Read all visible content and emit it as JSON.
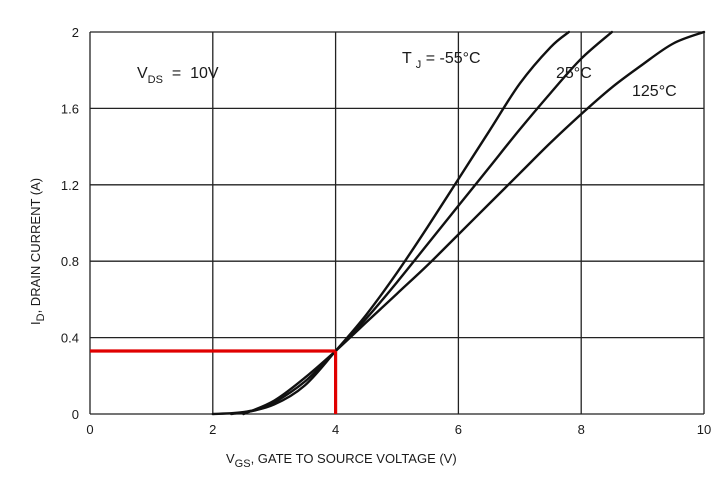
{
  "chart_data": {
    "type": "line",
    "xlabel_main": "V",
    "xlabel_sub": "GS",
    "xlabel_rest": ", GATE TO SOURCE VOLTAGE (V)",
    "ylabel_main": "I",
    "ylabel_sub": "D",
    "ylabel_rest": ", DRAIN CURRENT (A)",
    "xlim": [
      0,
      10
    ],
    "ylim": [
      0,
      2
    ],
    "x_ticks": [
      "0",
      "2",
      "4",
      "6",
      "8",
      "10"
    ],
    "y_ticks": [
      "0",
      "0.4",
      "0.8",
      "1.2",
      "1.6",
      "2"
    ],
    "grid": true,
    "annotation_vds": {
      "main": "V",
      "sub": "DS",
      "rest": "  =  10V"
    },
    "annotation_tj": {
      "main": "T",
      "sub": "J",
      "rest": " = -55°C"
    },
    "series": [
      {
        "name": "-55°C",
        "label": "T J = -55°C",
        "x": [
          2.0,
          2.5,
          3.0,
          3.5,
          4.0,
          4.5,
          5.0,
          5.5,
          6.0,
          6.5,
          7.0,
          7.5,
          7.8
        ],
        "y": [
          0.0,
          0.01,
          0.05,
          0.15,
          0.33,
          0.52,
          0.74,
          0.98,
          1.23,
          1.48,
          1.73,
          1.92,
          2.0
        ]
      },
      {
        "name": "25°C",
        "label": "25°C",
        "x": [
          2.3,
          2.7,
          3.0,
          3.5,
          4.0,
          4.5,
          5.0,
          5.5,
          6.0,
          6.5,
          7.0,
          7.5,
          8.0,
          8.5
        ],
        "y": [
          0.0,
          0.02,
          0.06,
          0.17,
          0.33,
          0.5,
          0.69,
          0.89,
          1.09,
          1.29,
          1.49,
          1.68,
          1.86,
          2.0
        ]
      },
      {
        "name": "125°C",
        "label": "125°C",
        "x": [
          2.5,
          3.0,
          3.5,
          4.0,
          4.5,
          5.0,
          5.5,
          6.0,
          6.5,
          7.0,
          7.5,
          8.0,
          8.5,
          9.0,
          9.5,
          10.0
        ],
        "y": [
          0.0,
          0.07,
          0.19,
          0.33,
          0.48,
          0.63,
          0.78,
          0.94,
          1.1,
          1.26,
          1.42,
          1.57,
          1.71,
          1.83,
          1.94,
          2.0
        ]
      }
    ],
    "highlight": {
      "x": 4,
      "y": 0.33,
      "color": "#e00000"
    }
  }
}
